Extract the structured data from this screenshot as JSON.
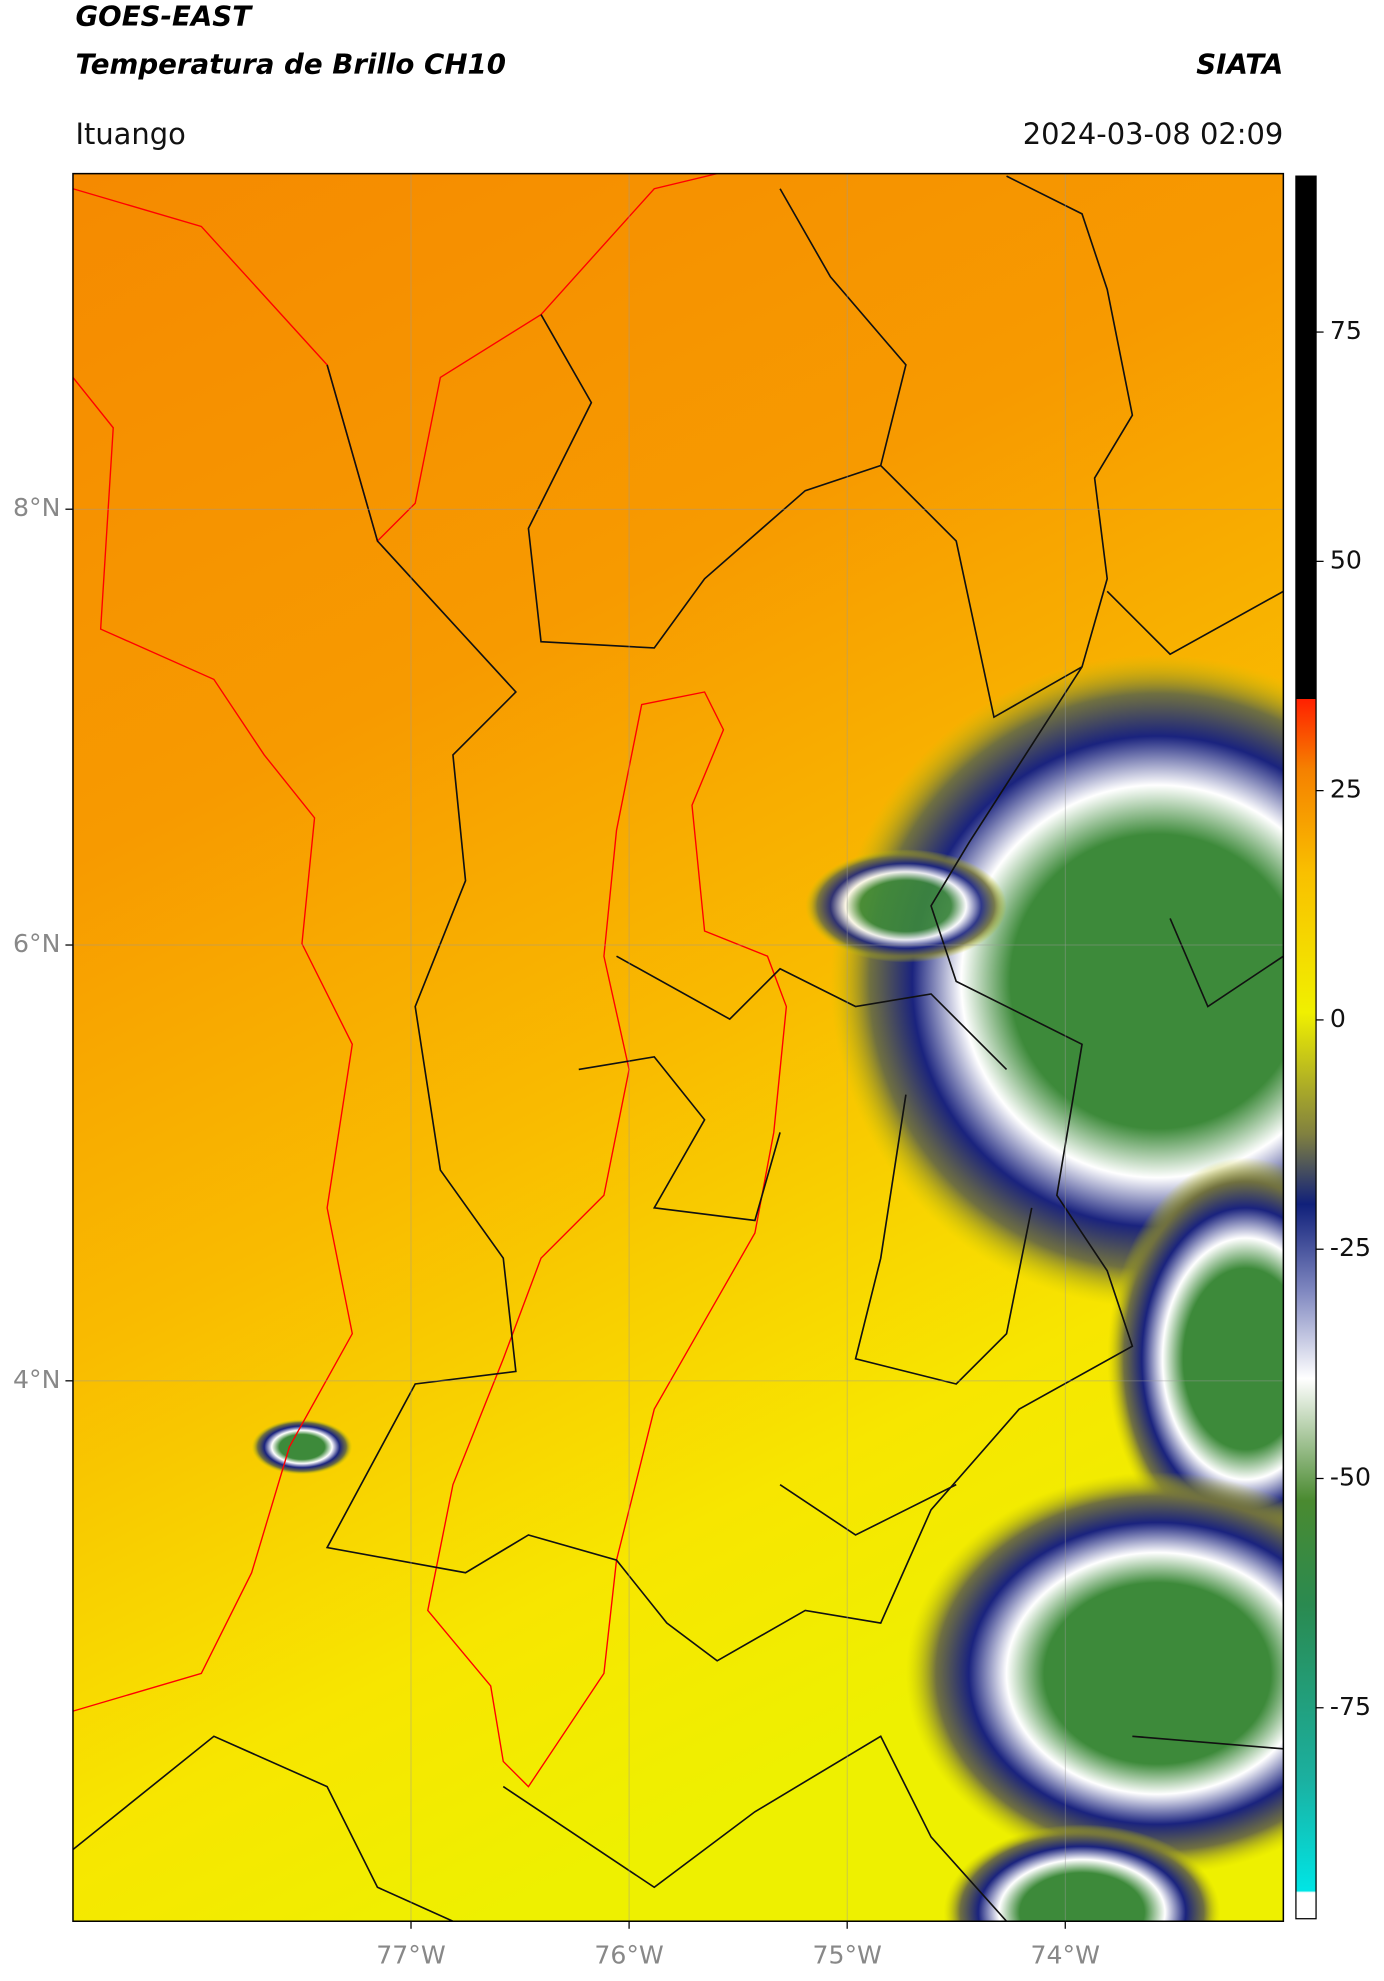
{
  "header": {
    "line1": "GOES-EAST",
    "line2": "Temperatura de Brillo CH10",
    "org": "SIATA",
    "location": "Ituango",
    "datetime": "2024-03-08 02:09"
  },
  "map": {
    "xlim": [
      -78.55,
      -73.0
    ],
    "ylim": [
      1.52,
      9.54
    ],
    "xticks": [
      {
        "value": -77,
        "label": "77°W"
      },
      {
        "value": -76,
        "label": "76°W"
      },
      {
        "value": -75,
        "label": "75°W"
      },
      {
        "value": -74,
        "label": "74°W"
      }
    ],
    "yticks": [
      {
        "value": 8,
        "label": "8°N"
      },
      {
        "value": 6,
        "label": "6°N"
      },
      {
        "value": 4,
        "label": "4°N"
      }
    ]
  },
  "colorbar": {
    "range": [
      -98,
      92
    ],
    "ticks": [
      75,
      50,
      25,
      0,
      -25,
      -50,
      -75
    ]
  }
}
